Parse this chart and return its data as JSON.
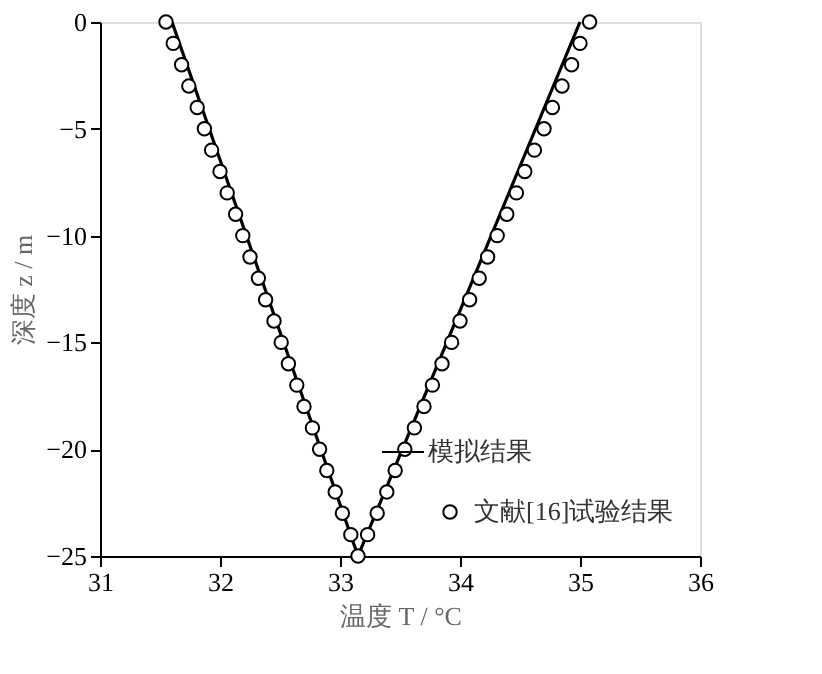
{
  "chart_data": {
    "type": "line",
    "xlabel": "温度 T / °C",
    "ylabel": "深度 z / m",
    "xlim": [
      31,
      36
    ],
    "xticks": [
      31,
      32,
      33,
      34,
      35,
      36
    ],
    "ylim": [
      -25,
      0
    ],
    "yticks": [
      0,
      -5,
      -10,
      -15,
      -20,
      -25
    ],
    "legend": "bottom right",
    "grid": false,
    "series": [
      {
        "name": "模拟结果",
        "color": "#000000",
        "marker": "none",
        "x": [
          31.6,
          33.15,
          35.0
        ],
        "values": [
          0,
          -25,
          0
        ]
      },
      {
        "name": "文献[16]试验结果",
        "type": "scatter",
        "color": "#000000",
        "marker": "circle",
        "x": [
          31.55,
          31.61,
          31.68,
          31.74,
          31.81,
          31.87,
          31.93,
          32.0,
          32.06,
          32.13,
          32.19,
          32.25,
          32.32,
          32.38,
          32.45,
          32.51,
          32.57,
          32.64,
          32.7,
          32.77,
          32.83,
          32.89,
          32.96,
          33.02,
          33.09,
          33.15,
          33.23,
          33.31,
          33.39,
          33.46,
          33.54,
          33.62,
          33.7,
          33.77,
          33.85,
          33.93,
          34.0,
          34.08,
          34.16,
          34.23,
          34.31,
          34.39,
          34.47,
          34.54,
          34.62,
          34.7,
          34.77,
          34.85,
          34.93,
          35.0,
          35.08
        ],
        "values": [
          0,
          -1,
          -2,
          -3,
          -4,
          -5,
          -6,
          -7,
          -8,
          -9,
          -10,
          -11,
          -12,
          -13,
          -14,
          -15,
          -16,
          -17,
          -18,
          -19,
          -20,
          -21,
          -22,
          -23,
          -24,
          -25,
          -24,
          -23,
          -22,
          -21,
          -20,
          -19,
          -18,
          -17,
          -16,
          -15,
          -14,
          -13,
          -12,
          -11,
          -10,
          -9,
          -8,
          -7,
          -6,
          -5,
          -4,
          -3,
          -2,
          -1,
          0
        ]
      }
    ]
  }
}
